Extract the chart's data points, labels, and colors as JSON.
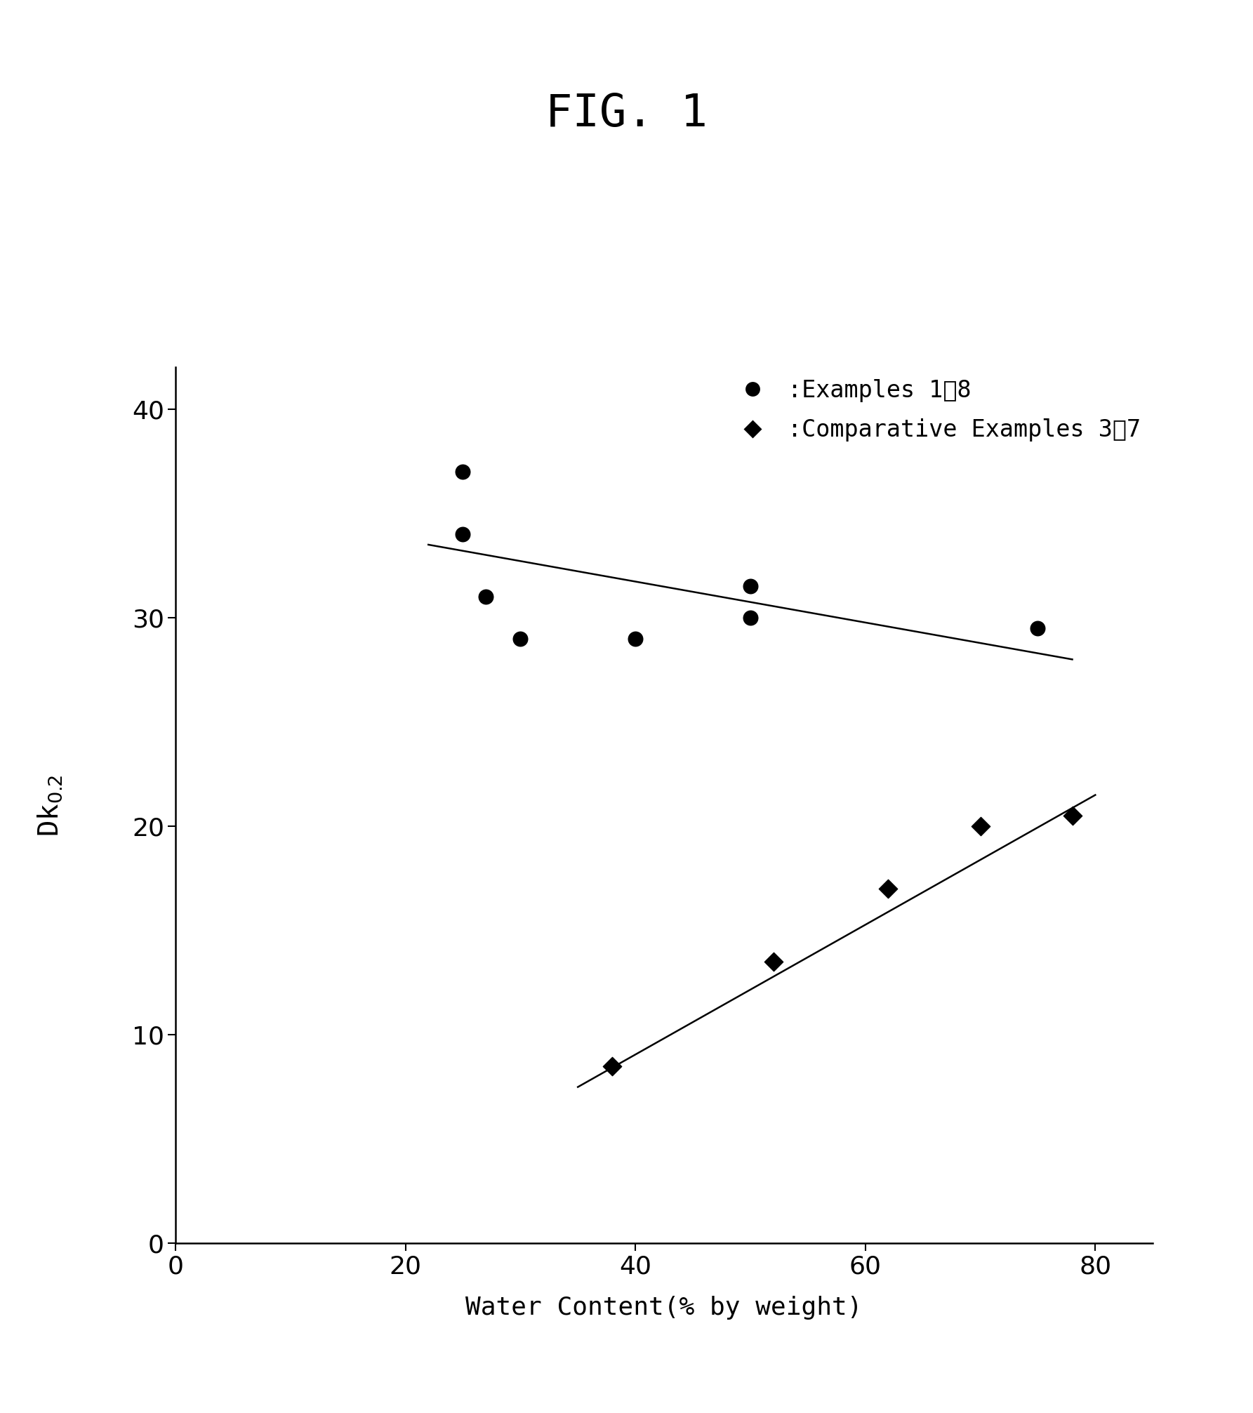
{
  "title": "FIG. 1",
  "xlabel": "Water Content(% by weight)",
  "xlim": [
    0,
    85
  ],
  "ylim": [
    0,
    42
  ],
  "xticks": [
    0,
    20,
    40,
    60,
    80
  ],
  "yticks": [
    0,
    10,
    20,
    30,
    40
  ],
  "examples_x": [
    25,
    25,
    27,
    30,
    40,
    50,
    50,
    75
  ],
  "examples_y": [
    37,
    34,
    31,
    29,
    29,
    31.5,
    30,
    29.5
  ],
  "comp_x": [
    38,
    52,
    62,
    70,
    78
  ],
  "comp_y": [
    8.5,
    13.5,
    17,
    20,
    20.5
  ],
  "examples_line_x": [
    22,
    78
  ],
  "examples_line_y": [
    33.5,
    28.0
  ],
  "comp_line_x": [
    35,
    80
  ],
  "comp_line_y": [
    7.5,
    21.5
  ],
  "legend_label_circle": ":Examples 1～8",
  "legend_label_diamond": ":Comparative Examples 3～7",
  "background_color": "#ffffff",
  "marker_color": "#000000",
  "line_color": "#000000",
  "title_fontsize": 46,
  "label_fontsize": 26,
  "tick_fontsize": 26,
  "legend_fontsize": 24,
  "ylabel_fontsize": 28
}
